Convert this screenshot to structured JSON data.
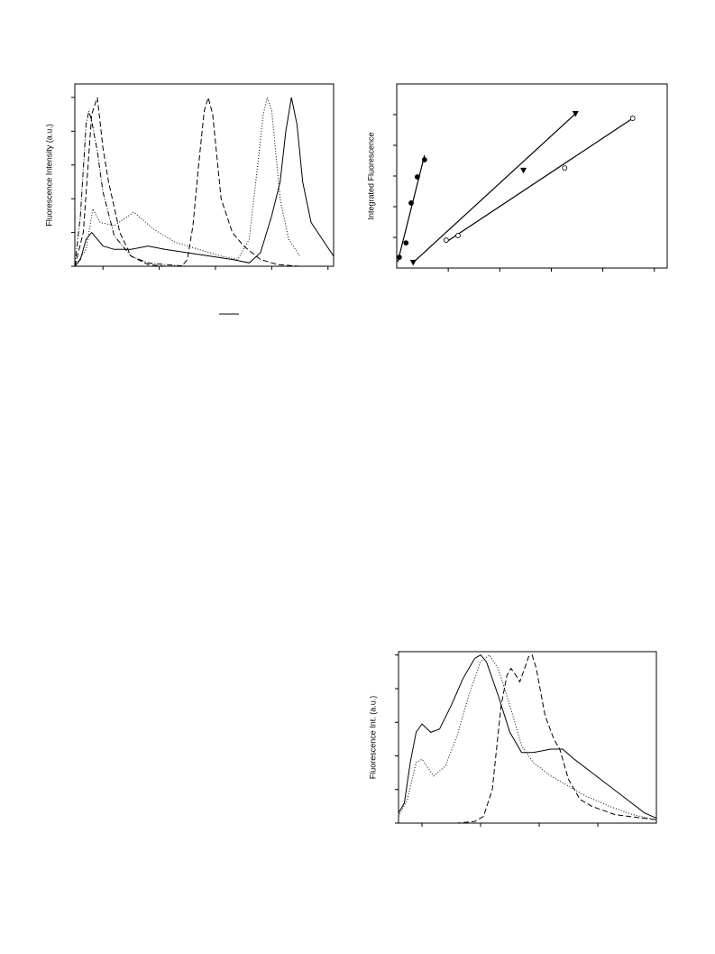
{
  "chart_data": [
    {
      "type": "line",
      "y_label": "Fluorescence Intensity (a.u.)",
      "xlim": [
        0,
        4.6
      ],
      "ylim": [
        0,
        5.4
      ],
      "xticks": [
        0.5,
        1.5,
        2.5,
        3.5,
        4.5
      ],
      "yticks": [
        0,
        1,
        2,
        3,
        4,
        5
      ],
      "series": [
        {
          "color": "#000000",
          "dash": "solid",
          "x": [
            0,
            0.1,
            0.2,
            0.3,
            0.4,
            0.5,
            0.7,
            1.0,
            1.3,
            1.6,
            2.0,
            2.4,
            2.8,
            3.1,
            3.3,
            3.5,
            3.65,
            3.75,
            3.85,
            3.95,
            4.05,
            4.2,
            4.4,
            4.6
          ],
          "values": [
            0,
            0.2,
            0.8,
            1.0,
            0.8,
            0.6,
            0.5,
            0.5,
            0.6,
            0.5,
            0.4,
            0.3,
            0.2,
            0.1,
            0.4,
            1.5,
            2.5,
            4.0,
            5.0,
            4.2,
            2.5,
            1.3,
            0.8,
            0.3
          ]
        },
        {
          "color": "#000000",
          "dash": "dashed",
          "x": [
            0,
            0.15,
            0.3,
            0.4,
            0.5,
            0.6,
            0.8,
            1.0,
            1.3,
            1.6,
            1.9,
            2.0,
            2.1,
            2.2,
            2.3,
            2.37,
            2.45,
            2.6,
            2.8,
            3.0,
            3.3,
            3.6,
            4.0,
            4.6
          ],
          "values": [
            0,
            1.0,
            4.5,
            5.0,
            3.5,
            2.5,
            1.0,
            0.3,
            0.05,
            0,
            0,
            0.2,
            1.2,
            3.0,
            4.6,
            5.0,
            4.5,
            2.0,
            1.0,
            0.6,
            0.2,
            0.05,
            0,
            0
          ]
        },
        {
          "color": "#000000",
          "dash": "dashdot",
          "x": [
            0,
            0.1,
            0.2,
            0.25,
            0.3,
            0.4,
            0.5,
            0.7,
            1.0,
            1.3,
            1.6,
            2.0,
            2.5,
            3.0,
            4.6
          ],
          "values": [
            0,
            1.5,
            4.2,
            4.6,
            4.3,
            3.4,
            2.2,
            0.9,
            0.3,
            0.1,
            0.05,
            0,
            0,
            0,
            0
          ]
        },
        {
          "color": "#000000",
          "dash": "dotted",
          "x": [
            0,
            0.2,
            0.32,
            0.45,
            0.7,
            1.05,
            1.4,
            1.8,
            2.2,
            2.6,
            2.9,
            3.1,
            3.25,
            3.35,
            3.42,
            3.5,
            3.65,
            3.8,
            4.0
          ],
          "values": [
            0,
            0.5,
            1.7,
            1.3,
            1.2,
            1.6,
            1.1,
            0.7,
            0.5,
            0.3,
            0.2,
            0.8,
            3.0,
            4.5,
            5.0,
            4.6,
            2.0,
            0.8,
            0.3
          ]
        }
      ]
    },
    {
      "type": "scatter",
      "y_label": "Integrated Fluorescence",
      "xlim": [
        0,
        5.25
      ],
      "ylim": [
        0,
        6
      ],
      "xticks": [
        1,
        2,
        3,
        4,
        5
      ],
      "yticks": [
        1,
        2,
        3,
        4,
        5
      ],
      "series": [
        {
          "color": "#000000",
          "marker": "filled-circle",
          "x": [
            0.05,
            0.18,
            0.28,
            0.4,
            0.54
          ],
          "values": [
            0.35,
            0.82,
            2.12,
            2.97,
            3.53
          ],
          "fit_x": [
            0.02,
            0.54
          ],
          "fit_y": [
            0.2,
            3.68
          ]
        },
        {
          "color": "#000000",
          "marker": "triangle",
          "x": [
            0.32,
            2.46,
            3.47
          ],
          "values": [
            0.18,
            3.18,
            5.03
          ],
          "fit_x": [
            0.3,
            3.47
          ],
          "fit_y": [
            0.15,
            5.03
          ]
        },
        {
          "color": "#000000",
          "marker": "open-circle",
          "x": [
            0.96,
            1.19,
            3.26,
            4.58
          ],
          "values": [
            0.91,
            1.06,
            3.26,
            4.88
          ],
          "fit_x": [
            0.96,
            4.58
          ],
          "fit_y": [
            0.85,
            4.88
          ]
        }
      ]
    },
    {
      "type": "line",
      "y_label": "Fluorescence Int. (a.u.)",
      "xlim": [
        0,
        4.4
      ],
      "ylim": [
        0,
        5.1
      ],
      "xticks": [
        0.4,
        1.4,
        2.4,
        3.4
      ],
      "yticks": [
        0,
        1,
        2,
        3,
        4,
        5
      ],
      "series": [
        {
          "color": "#000000",
          "dash": "solid",
          "x": [
            0,
            0.1,
            0.2,
            0.3,
            0.4,
            0.55,
            0.7,
            0.9,
            1.1,
            1.3,
            1.4,
            1.5,
            1.7,
            1.9,
            2.1,
            2.3,
            2.6,
            2.8,
            3.0,
            3.3,
            3.6,
            3.9,
            4.2,
            4.4
          ],
          "values": [
            0.3,
            0.6,
            1.8,
            2.7,
            2.95,
            2.7,
            2.8,
            3.5,
            4.3,
            4.9,
            5.0,
            4.8,
            3.8,
            2.7,
            2.1,
            2.1,
            2.2,
            2.2,
            1.9,
            1.5,
            1.1,
            0.7,
            0.3,
            0.15
          ]
        },
        {
          "color": "#000000",
          "dash": "dotted",
          "x": [
            0,
            0.15,
            0.3,
            0.4,
            0.6,
            0.8,
            1.0,
            1.2,
            1.4,
            1.55,
            1.7,
            1.9,
            2.1,
            2.3,
            2.6,
            2.9,
            3.2,
            3.6,
            4.0,
            4.4
          ],
          "values": [
            0.2,
            0.7,
            1.8,
            1.9,
            1.4,
            1.7,
            2.6,
            3.8,
            4.8,
            5.0,
            4.6,
            3.5,
            2.3,
            1.8,
            1.4,
            1.1,
            0.8,
            0.5,
            0.25,
            0.1
          ]
        },
        {
          "color": "#000000",
          "dash": "dashed",
          "x": [
            0,
            1.0,
            1.3,
            1.45,
            1.6,
            1.75,
            1.85,
            1.92,
            2.0,
            2.07,
            2.15,
            2.22,
            2.28,
            2.35,
            2.5,
            2.65,
            2.75,
            2.9,
            3.1,
            3.3,
            3.7,
            4.4
          ],
          "values": [
            0,
            0,
            0.05,
            0.2,
            1.0,
            3.5,
            4.4,
            4.6,
            4.4,
            4.2,
            4.6,
            4.95,
            5.0,
            4.6,
            3.2,
            2.5,
            2.2,
            1.3,
            0.7,
            0.5,
            0.25,
            0.1
          ]
        }
      ]
    }
  ]
}
